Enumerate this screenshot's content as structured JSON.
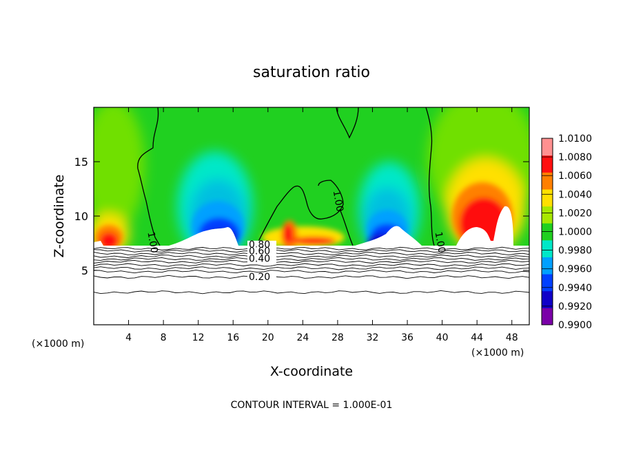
{
  "chart_data": {
    "type": "heatmap",
    "title": "saturation ratio",
    "xlabel": "X-coordinate",
    "ylabel": "Z-coordinate",
    "x_unit": "(×1000 m)",
    "x_unit_right": "(×1000 m)",
    "footer": "CONTOUR INTERVAL = 1.000E-01",
    "xlim": [
      0,
      50
    ],
    "ylim": [
      0,
      20
    ],
    "x_ticks": [
      4,
      8,
      12,
      16,
      20,
      24,
      28,
      32,
      36,
      40,
      44,
      48
    ],
    "y_ticks": [
      5,
      10,
      15
    ],
    "colorbar": {
      "levels": [
        "0.9900",
        "0.9920",
        "0.9940",
        "0.9960",
        "0.9980",
        "1.0000",
        "1.0020",
        "1.0040",
        "1.0060",
        "1.0080",
        "1.0100"
      ],
      "colors": [
        "#7a00a8",
        "#1000c8",
        "#0040ff",
        "#00a0ff",
        "#00e8c8",
        "#20d020",
        "#a8e800",
        "#ffe000",
        "#ff8000",
        "#ff1010",
        "#ff9090"
      ]
    },
    "contour_labels": [
      {
        "text": "1.00",
        "x": 6.2,
        "y": 8.5
      },
      {
        "text": "1.00",
        "x": 27.5,
        "y": 12.3
      },
      {
        "text": "1.00",
        "x": 39.2,
        "y": 8.5
      },
      {
        "text": "0.80",
        "x": 17.8,
        "y": 7.1
      },
      {
        "text": "0.60",
        "x": 17.8,
        "y": 6.5
      },
      {
        "text": "0.40",
        "x": 17.8,
        "y": 5.8
      },
      {
        "text": "0.20",
        "x": 17.8,
        "y": 4.1
      }
    ],
    "surface_contours": [
      0.2,
      0.4,
      0.6,
      0.8
    ],
    "surface_top": 7.2
  }
}
